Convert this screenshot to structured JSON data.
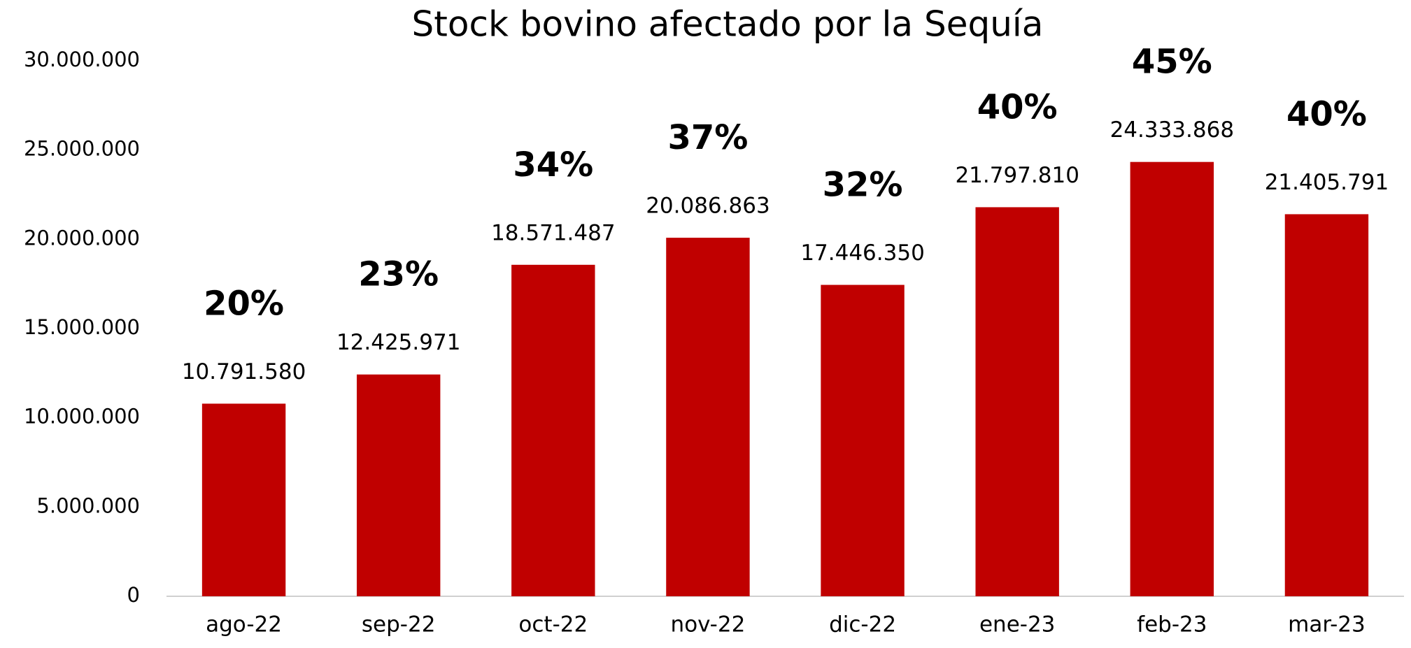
{
  "chart_data": {
    "type": "bar",
    "title": "Stock bovino afectado por la Sequía",
    "categories": [
      "ago-22",
      "sep-22",
      "oct-22",
      "nov-22",
      "dic-22",
      "ene-23",
      "feb-23",
      "mar-23"
    ],
    "values": [
      10791580,
      12425971,
      18571487,
      20086863,
      17446350,
      21797810,
      24333868,
      21405791
    ],
    "value_labels": [
      "10.791.580",
      "12.425.971",
      "18.571.487",
      "20.086.863",
      "17.446.350",
      "21.797.810",
      "24.333.868",
      "21.405.791"
    ],
    "annotations": [
      "20%",
      "23%",
      "34%",
      "37%",
      "32%",
      "40%",
      "45%",
      "40%"
    ],
    "color": "#c00000",
    "ylim": [
      0,
      30000000
    ],
    "yticks": [
      0,
      {
        "value": 5000000,
        "label": "5.000.000"
      },
      {
        "value": 10000000,
        "label": "10.000.000"
      },
      {
        "value": 15000000,
        "label": "15.000.000"
      },
      {
        "value": 20000000,
        "label": "20.000.000"
      },
      {
        "value": 25000000,
        "label": "25.000.000"
      },
      {
        "value": 30000000,
        "label": "30.000.000"
      }
    ],
    "grid": false
  }
}
